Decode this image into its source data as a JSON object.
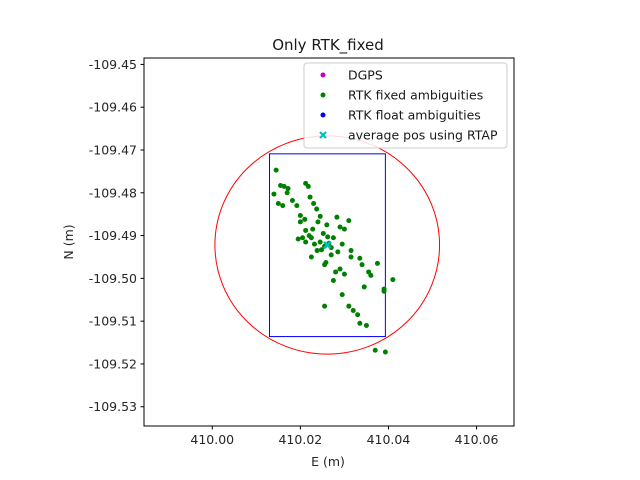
{
  "chart_data": {
    "type": "scatter",
    "title": "Only RTK_fixed",
    "xlabel": "E (m)",
    "ylabel": "N (m)",
    "xlim": [
      409.9845,
      410.0685
    ],
    "ylim": [
      -109.5345,
      -109.4485
    ],
    "xticks": [
      410.0,
      410.02,
      410.04,
      410.06
    ],
    "xtick_labels": [
      "410.00",
      "410.02",
      "410.04",
      "410.06"
    ],
    "yticks": [
      -109.45,
      -109.46,
      -109.47,
      -109.48,
      -109.49,
      -109.5,
      -109.51,
      -109.52,
      -109.53
    ],
    "ytick_labels": [
      "-109.45",
      "-109.46",
      "-109.47",
      "-109.48",
      "-109.49",
      "-109.50",
      "-109.51",
      "-109.52",
      "-109.53"
    ],
    "grid": false,
    "legend_position": "top-right",
    "series": [
      {
        "name": "DGPS",
        "color": "#bf00bf",
        "marker": "dot",
        "x": [],
        "y": []
      },
      {
        "name": "RTK fixed ambiguities",
        "color": "#008000",
        "marker": "dot",
        "x": [
          410.0145,
          410.014,
          410.0155,
          410.0163,
          410.0172,
          410.017,
          410.015,
          410.016,
          410.0182,
          410.0192,
          410.02,
          410.02,
          410.021,
          410.0212,
          410.0218,
          410.0222,
          410.023,
          410.0237,
          410.0245,
          410.026,
          410.0262,
          410.0252,
          410.024,
          410.0228,
          410.0212,
          410.0195,
          410.0205,
          410.0212,
          410.022,
          410.0225,
          410.0232,
          410.0238,
          410.0245,
          410.0255,
          410.0265,
          410.0275,
          410.0283,
          410.029,
          410.03,
          410.031,
          410.0315,
          410.0295,
          410.0285,
          410.027,
          410.0248,
          410.0225,
          410.0255,
          410.0258,
          410.027,
          410.028,
          410.029,
          410.03,
          410.0315,
          410.0335,
          410.034,
          410.0355,
          410.036,
          410.0375,
          410.039,
          410.041,
          410.039,
          410.0345,
          410.0275,
          410.0255,
          410.0295,
          410.031,
          410.032,
          410.033,
          410.035,
          410.0335,
          410.037,
          410.0393
        ],
        "y": [
          -109.4747,
          -109.4803,
          -109.4783,
          -109.4785,
          -109.479,
          -109.48,
          -109.4825,
          -109.483,
          -109.4818,
          -109.483,
          -109.4853,
          -109.4868,
          -109.4862,
          -109.4778,
          -109.4785,
          -109.481,
          -109.4825,
          -109.4838,
          -109.4855,
          -109.4875,
          -109.4903,
          -109.4895,
          -109.4868,
          -109.4885,
          -109.4888,
          -109.4908,
          -109.4905,
          -109.4915,
          -109.49,
          -109.4905,
          -109.492,
          -109.4935,
          -109.4915,
          -109.4925,
          -109.4918,
          -109.4905,
          -109.4857,
          -109.488,
          -109.4885,
          -109.4865,
          -109.4935,
          -109.492,
          -109.4938,
          -109.4928,
          -109.4933,
          -109.495,
          -109.4968,
          -109.4963,
          -109.4945,
          -109.4985,
          -109.4978,
          -109.499,
          -109.495,
          -109.4953,
          -109.4968,
          -109.4985,
          -109.4993,
          -109.4965,
          -109.503,
          -109.5003,
          -109.5025,
          -109.502,
          -109.5005,
          -109.5065,
          -109.5038,
          -109.5065,
          -109.5075,
          -109.5085,
          -109.511,
          -109.5105,
          -109.5168,
          -109.5172
        ]
      },
      {
        "name": "RTK float ambiguities",
        "color": "#0000ff",
        "marker": "dot",
        "x": [],
        "y": []
      },
      {
        "name": "average pos using RTAP",
        "color": "#00bfbf",
        "marker": "x",
        "x": [
          410.0261
        ],
        "y": [
          -109.4922
        ]
      }
    ],
    "rectangle": {
      "x0": 410.013,
      "x1": 410.0393,
      "y0": -109.5136,
      "y1": -109.4709,
      "color": "#0000ff"
    },
    "circle": {
      "cx": 410.0261,
      "cy": -109.4922,
      "r": 0.0255,
      "color": "#ff0000"
    }
  }
}
